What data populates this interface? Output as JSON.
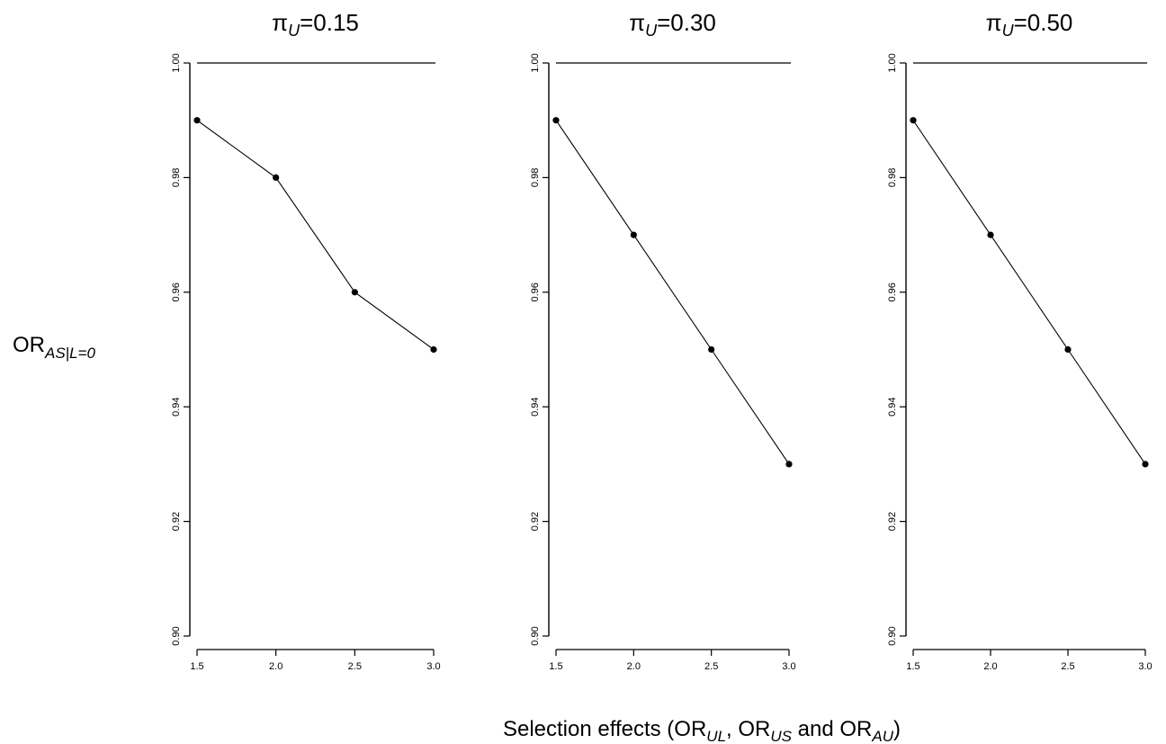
{
  "chart_data": [
    {
      "type": "line",
      "title_main": "π",
      "title_sub": "U",
      "title_rest": "=0.15",
      "x": [
        1.5,
        2.0,
        2.5,
        3.0
      ],
      "x_tick_labels": [
        "1.5",
        "2.0",
        "2.5",
        "3.0"
      ],
      "values": [
        0.99,
        0.98,
        0.96,
        0.95
      ],
      "reference_line": 1.0,
      "y_tick_labels": [
        "0.90",
        "0.92",
        "0.94",
        "0.96",
        "0.98",
        "1.00"
      ],
      "ylim": [
        0.9,
        1.0
      ],
      "xlim": [
        1.5,
        3.0
      ],
      "grid": false
    },
    {
      "type": "line",
      "title_main": "π",
      "title_sub": "U",
      "title_rest": "=0.30",
      "x": [
        1.5,
        2.0,
        2.5,
        3.0
      ],
      "x_tick_labels": [
        "1.5",
        "2.0",
        "2.5",
        "3.0"
      ],
      "values": [
        0.99,
        0.97,
        0.95,
        0.93
      ],
      "reference_line": 1.0,
      "y_tick_labels": [
        "0.90",
        "0.92",
        "0.94",
        "0.96",
        "0.98",
        "1.00"
      ],
      "ylim": [
        0.9,
        1.0
      ],
      "xlim": [
        1.5,
        3.0
      ],
      "grid": false
    },
    {
      "type": "line",
      "title_main": "π",
      "title_sub": "U",
      "title_rest": "=0.50",
      "x": [
        1.5,
        2.0,
        2.5,
        3.0
      ],
      "x_tick_labels": [
        "1.5",
        "2.0",
        "2.5",
        "3.0"
      ],
      "values": [
        0.99,
        0.97,
        0.95,
        0.93
      ],
      "reference_line": 1.0,
      "y_tick_labels": [
        "0.90",
        "0.92",
        "0.94",
        "0.96",
        "0.98",
        "1.00"
      ],
      "ylim": [
        0.9,
        1.0
      ],
      "xlim": [
        1.5,
        3.0
      ],
      "grid": false
    }
  ],
  "ylabel": {
    "main": "OR",
    "sub": "AS|L=0"
  },
  "xlabel": {
    "prefix": "Selection effects (OR",
    "sub1": "UL",
    "mid1": ", OR",
    "sub2": "US",
    "mid2": " and OR",
    "sub3": "AU",
    "suffix": ")"
  }
}
